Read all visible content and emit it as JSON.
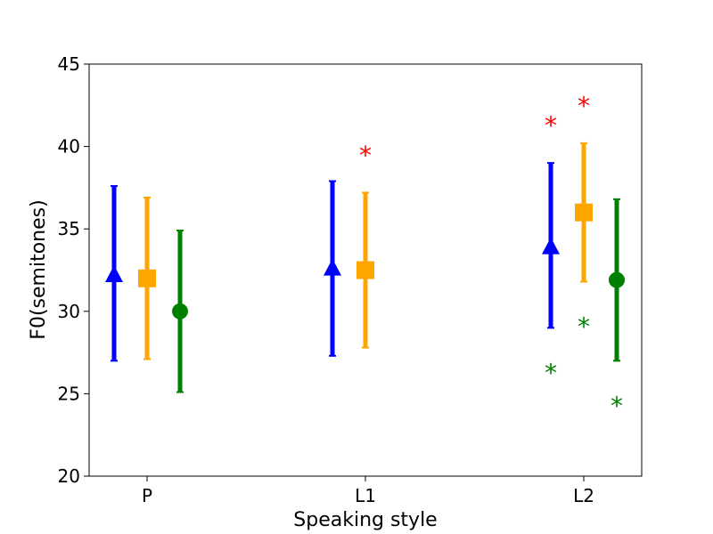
{
  "chart_data": {
    "type": "scatter",
    "title": "",
    "xlabel": "Speaking style",
    "ylabel": "F0(semitones)",
    "categories": [
      "P",
      "L1",
      "L2"
    ],
    "ylim": [
      20,
      45
    ],
    "yticks": [
      20,
      25,
      30,
      35,
      40,
      45
    ],
    "grid": false,
    "series": [
      {
        "color": "#0000ff",
        "marker": "triangle",
        "points": [
          {
            "category": "P",
            "mean": 32.2,
            "low": 27.0,
            "high": 37.6
          },
          {
            "category": "L1",
            "mean": 32.6,
            "low": 27.3,
            "high": 37.9
          },
          {
            "category": "L2",
            "mean": 33.9,
            "low": 29.0,
            "high": 39.0
          }
        ]
      },
      {
        "color": "#ffa500",
        "marker": "square",
        "points": [
          {
            "category": "P",
            "mean": 32.0,
            "low": 27.1,
            "high": 36.9
          },
          {
            "category": "L1",
            "mean": 32.5,
            "low": 27.8,
            "high": 37.2
          },
          {
            "category": "L2",
            "mean": 36.0,
            "low": 31.8,
            "high": 40.2
          }
        ]
      },
      {
        "color": "#008000",
        "marker": "circle",
        "points": [
          {
            "category": "P",
            "mean": 30.0,
            "low": 25.1,
            "high": 34.9
          },
          {
            "category": "L2",
            "mean": 31.9,
            "low": 27.0,
            "high": 36.8
          }
        ]
      }
    ],
    "annotations": [
      {
        "text": "*",
        "category": "L1",
        "series": 1,
        "y": 39.6,
        "color": "#ff0000"
      },
      {
        "text": "*",
        "category": "L2",
        "series": 0,
        "y": 41.4,
        "color": "#ff0000"
      },
      {
        "text": "*",
        "category": "L2",
        "series": 1,
        "y": 42.6,
        "color": "#ff0000"
      },
      {
        "text": "*",
        "category": "L2",
        "series": 0,
        "y": 26.4,
        "color": "#008000"
      },
      {
        "text": "*",
        "category": "L2",
        "series": 1,
        "y": 29.2,
        "color": "#008000"
      },
      {
        "text": "*",
        "category": "L2",
        "series": 2,
        "y": 24.4,
        "color": "#008000"
      }
    ]
  }
}
